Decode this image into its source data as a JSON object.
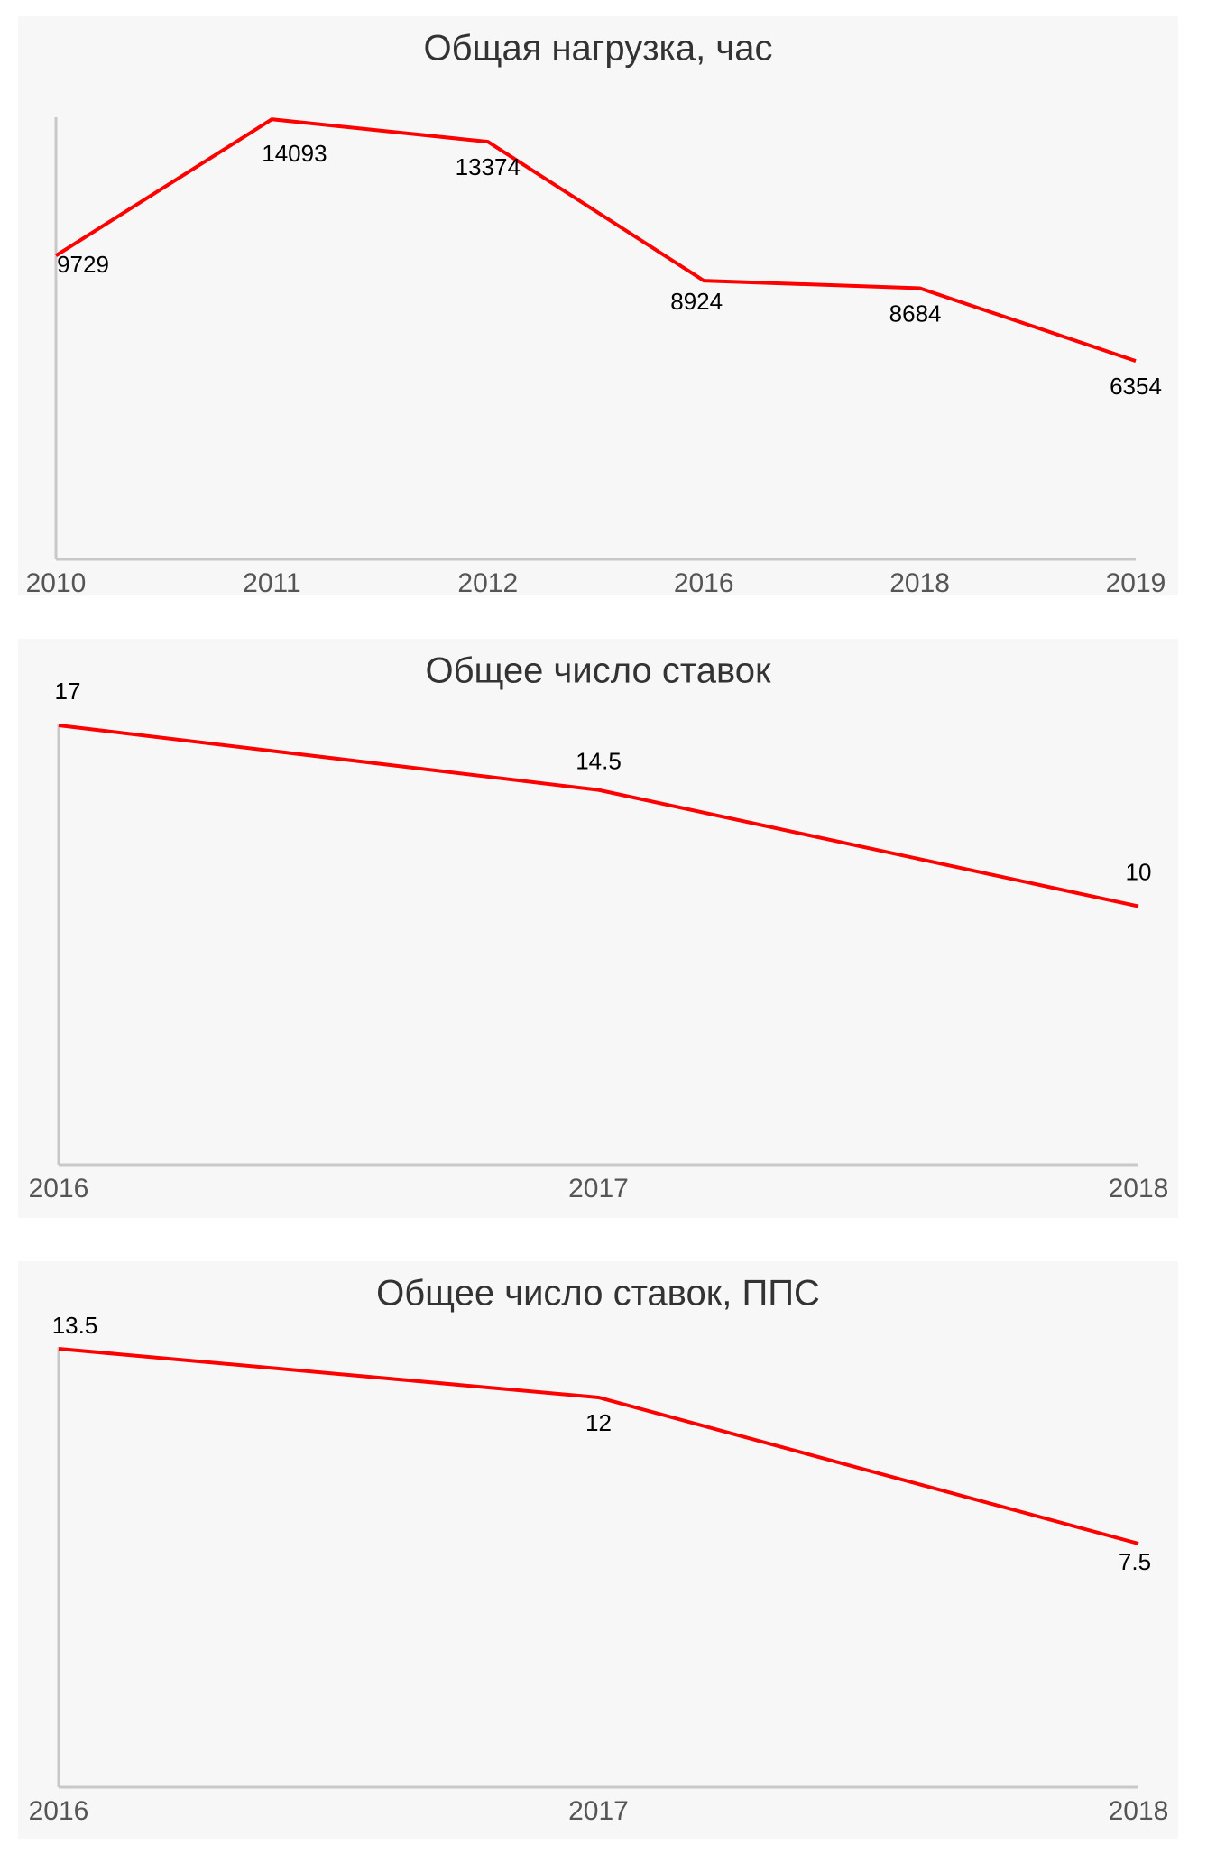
{
  "chart_data": [
    {
      "type": "line",
      "title": "Общая нагрузка, час",
      "categories": [
        "2010",
        "2011",
        "2012",
        "2016",
        "2018",
        "2019"
      ],
      "values": [
        9729,
        14093,
        13374,
        8924,
        8684,
        6354
      ],
      "color": "#ff0000",
      "ylim": [
        0,
        14100
      ]
    },
    {
      "type": "line",
      "title": "Общее число ставок",
      "categories": [
        "2016",
        "2017",
        "2018"
      ],
      "values": [
        17,
        14.5,
        10
      ],
      "color": "#ff0000",
      "ylim": [
        0,
        17
      ]
    },
    {
      "type": "line",
      "title": "Общее число ставок, ППС",
      "categories": [
        "2016",
        "2017",
        "2018"
      ],
      "values": [
        13.5,
        12,
        7.5
      ],
      "color": "#ff0000",
      "ylim": [
        0,
        13.5
      ]
    }
  ]
}
